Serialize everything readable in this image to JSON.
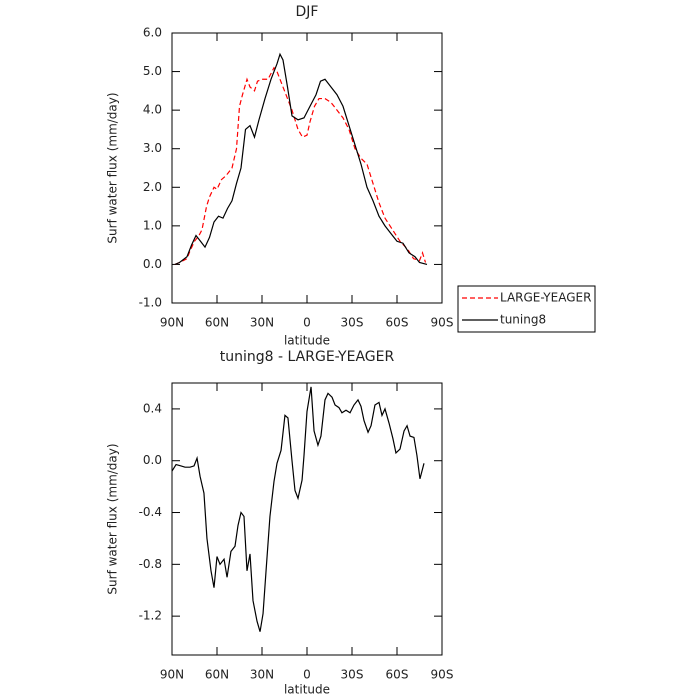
{
  "chart_data": [
    {
      "type": "line",
      "title": "DJF",
      "xlabel": "latitude",
      "ylabel": "Surf water flux (mm/day)",
      "xlim": [
        90,
        -90
      ],
      "xticks": [
        {
          "value": 90,
          "label": "90N"
        },
        {
          "value": 60,
          "label": "60N"
        },
        {
          "value": 30,
          "label": "30N"
        },
        0,
        {
          "value": -30,
          "label": "30S"
        },
        {
          "value": -60,
          "label": "60S"
        },
        {
          "value": -90,
          "label": "90S"
        }
      ],
      "ylim": [
        -1,
        6
      ],
      "yticks": [
        {
          "value": -1,
          "label": "-1.0"
        },
        {
          "value": 0,
          "label": "0.0"
        },
        {
          "value": 1,
          "label": "1.0"
        },
        {
          "value": 2,
          "label": "2.0"
        },
        {
          "value": 3,
          "label": "3.0"
        },
        {
          "value": 4,
          "label": "4.0"
        },
        {
          "value": 5,
          "label": "5.0"
        },
        {
          "value": 6,
          "label": "6.0"
        }
      ],
      "legend": "right",
      "series": [
        {
          "name": "LARGE-YEAGER",
          "color": "#ff0000",
          "dashed": true,
          "x": [
            88,
            85,
            80,
            78,
            75,
            72,
            70,
            67,
            65,
            62,
            60,
            57,
            54,
            50,
            47,
            45,
            43,
            40,
            38,
            35,
            33,
            30,
            26,
            22,
            20,
            17,
            14,
            10,
            6,
            3,
            0,
            -2,
            -5,
            -8,
            -12,
            -16,
            -20,
            -24,
            -28,
            -32,
            -36,
            -40,
            -44,
            -48,
            -52,
            -57,
            -62,
            -67,
            -71,
            -75,
            -77,
            -79
          ],
          "values": [
            0.0,
            0.05,
            0.15,
            0.35,
            0.6,
            0.75,
            0.9,
            1.5,
            1.75,
            2.0,
            1.95,
            2.2,
            2.3,
            2.5,
            3.0,
            4.1,
            4.4,
            4.8,
            4.6,
            4.5,
            4.75,
            4.8,
            4.8,
            5.1,
            5.0,
            4.7,
            4.4,
            4.0,
            3.5,
            3.3,
            3.35,
            3.7,
            4.1,
            4.3,
            4.3,
            4.2,
            4.0,
            3.8,
            3.5,
            3.0,
            2.75,
            2.6,
            2.1,
            1.6,
            1.2,
            0.9,
            0.6,
            0.4,
            0.15,
            0.1,
            0.3,
            0.05
          ]
        },
        {
          "name": "tuning8",
          "color": "#000000",
          "dashed": false,
          "x": [
            88,
            85,
            80,
            77,
            74,
            71,
            68,
            65,
            62,
            59,
            56,
            53,
            50,
            47,
            44,
            41,
            38,
            35,
            32,
            28,
            24,
            20,
            18,
            16,
            13,
            10,
            6,
            2,
            -2,
            -6,
            -9,
            -12,
            -16,
            -20,
            -24,
            -28,
            -32,
            -36,
            -40,
            -44,
            -48,
            -52,
            -56,
            -60,
            -64,
            -68,
            -72,
            -75,
            -80
          ],
          "values": [
            0.0,
            0.05,
            0.2,
            0.5,
            0.75,
            0.6,
            0.45,
            0.7,
            1.1,
            1.25,
            1.2,
            1.45,
            1.65,
            2.1,
            2.5,
            3.5,
            3.6,
            3.3,
            3.75,
            4.3,
            4.8,
            5.2,
            5.45,
            5.3,
            4.6,
            3.85,
            3.75,
            3.8,
            4.1,
            4.4,
            4.75,
            4.8,
            4.6,
            4.4,
            4.1,
            3.6,
            3.1,
            2.6,
            2.0,
            1.65,
            1.25,
            1.0,
            0.8,
            0.6,
            0.55,
            0.3,
            0.2,
            0.05,
            0.0
          ]
        }
      ]
    },
    {
      "type": "line",
      "title": "tuning8 - LARGE-YEAGER",
      "xlabel": "latitude",
      "ylabel": "Surf water flux (mm/day)",
      "xlim": [
        90,
        -90
      ],
      "xticks": [
        {
          "value": 90,
          "label": "90N"
        },
        {
          "value": 60,
          "label": "60N"
        },
        {
          "value": 30,
          "label": "30N"
        },
        0,
        {
          "value": -30,
          "label": "30S"
        },
        {
          "value": -60,
          "label": "60S"
        },
        {
          "value": -90,
          "label": "90S"
        }
      ],
      "ylim": [
        -1.5,
        0.6
      ],
      "yticks": [
        -1.2,
        -0.8,
        -0.4,
        {
          "value": 0,
          "label": "0.0"
        },
        0.4
      ],
      "series": [
        {
          "color": "#000000",
          "dashed": false,
          "x": [
            90,
            87.3,
            84,
            81.3,
            78,
            75.3,
            73.3,
            71.3,
            68.7,
            66.7,
            64,
            62,
            60,
            58,
            55.3,
            53.3,
            50.7,
            48,
            46,
            44,
            42,
            40,
            38,
            36,
            33.3,
            31.3,
            29.3,
            27.3,
            24.7,
            22,
            20,
            17.3,
            14.7,
            12.7,
            10,
            8,
            6,
            3.3,
            2,
            0,
            -2.7,
            -4.7,
            -7.3,
            -9.3,
            -12,
            -14,
            -16.7,
            -18.7,
            -21.3,
            -23.3,
            -26,
            -28.7,
            -31.3,
            -34,
            -36,
            -38,
            -40.7,
            -42.7,
            -45.3,
            -48,
            -50,
            -52,
            -54.7,
            -57.3,
            -59.3,
            -62,
            -64.7,
            -66.7,
            -68.7,
            -71.3,
            -73.3,
            -75.3,
            -78
          ],
          "values": [
            -0.08,
            -0.03,
            -0.04,
            -0.05,
            -0.05,
            -0.04,
            0.02,
            -0.12,
            -0.25,
            -0.6,
            -0.85,
            -0.98,
            -0.74,
            -0.8,
            -0.76,
            -0.9,
            -0.7,
            -0.66,
            -0.5,
            -0.4,
            -0.43,
            -0.85,
            -0.72,
            -1.08,
            -1.24,
            -1.32,
            -1.18,
            -0.85,
            -0.43,
            -0.16,
            -0.02,
            0.08,
            0.35,
            0.33,
            0.0,
            -0.23,
            -0.29,
            -0.15,
            0.04,
            0.38,
            0.57,
            0.23,
            0.12,
            0.19,
            0.47,
            0.52,
            0.49,
            0.43,
            0.41,
            0.37,
            0.39,
            0.37,
            0.43,
            0.47,
            0.42,
            0.31,
            0.22,
            0.27,
            0.43,
            0.45,
            0.35,
            0.4,
            0.29,
            0.17,
            0.06,
            0.09,
            0.23,
            0.27,
            0.19,
            0.18,
            0.04,
            -0.14,
            -0.02
          ]
        }
      ]
    }
  ]
}
